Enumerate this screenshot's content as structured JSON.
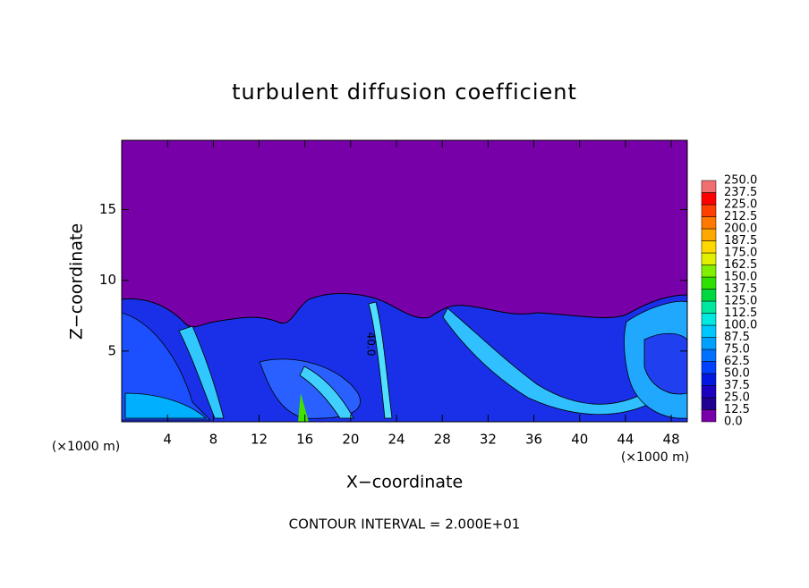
{
  "chart_data": {
    "type": "contour",
    "title": "turbulent diffusion coefficient",
    "xlabel": "X−coordinate",
    "ylabel": "Z−coordinate",
    "x_unit": "(×1000 m)",
    "footnote": "CONTOUR INTERVAL = 2.000E+01",
    "contour_label": "40.0",
    "xlim": [
      0,
      49.4
    ],
    "ylim": [
      0,
      19.9
    ],
    "xticks": [
      4,
      8,
      12,
      16,
      20,
      24,
      28,
      32,
      36,
      40,
      44,
      48
    ],
    "yticks": [
      5,
      10,
      15
    ],
    "background_color": "#7800a8",
    "levels": [
      {
        "value": 0,
        "label": "0.0"
      },
      {
        "value": 12.5,
        "label": "12.5"
      },
      {
        "value": 25,
        "label": "25.0"
      },
      {
        "value": 37.5,
        "label": "37.5"
      },
      {
        "value": 50,
        "label": "50.0"
      },
      {
        "value": 62.5,
        "label": "62.5"
      },
      {
        "value": 75,
        "label": "75.0"
      },
      {
        "value": 87.5,
        "label": "87.5"
      },
      {
        "value": 100,
        "label": "100.0"
      },
      {
        "value": 112.5,
        "label": "112.5"
      },
      {
        "value": 125,
        "label": "125.0"
      },
      {
        "value": 137.5,
        "label": "137.5"
      },
      {
        "value": 150,
        "label": "150.0"
      },
      {
        "value": 162.5,
        "label": "162.5"
      },
      {
        "value": 175,
        "label": "175.0"
      },
      {
        "value": 187.5,
        "label": "187.5"
      },
      {
        "value": 200,
        "label": "200.0"
      },
      {
        "value": 212.5,
        "label": "212.5"
      },
      {
        "value": 225,
        "label": "225.0"
      },
      {
        "value": 237.5,
        "label": "237.5"
      },
      {
        "value": 250,
        "label": "250.0"
      }
    ],
    "colors": [
      "#7800a8",
      "#200090",
      "#1c00c0",
      "#0018e0",
      "#0040ff",
      "#0070ff",
      "#00a0ff",
      "#00c8ff",
      "#00e8e0",
      "#00e8a0",
      "#00d840",
      "#30e000",
      "#80f000",
      "#e0f000",
      "#ffd800",
      "#ffa800",
      "#ff7800",
      "#ff4000",
      "#ff0000",
      "#f07070"
    ]
  }
}
